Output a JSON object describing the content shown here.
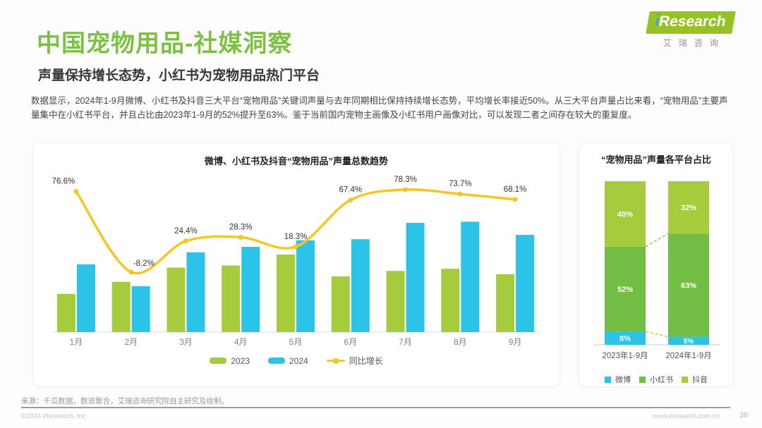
{
  "page": {
    "title": "中国宠物用品-社媒洞察",
    "subtitle": "声量保持增长态势，小红书为宠物用品热门平台",
    "body_text": "数据显示，2024年1-9月微博、小红书及抖音三大平台“宠物用品”关键词声量与去年同期相比保持持续增长态势，平均增长率接近50%。从三大平台声量占比来看，“宠物用品”主要声量集中在小红书平台，并且占比由2023年1-9月的52%提升至63%。鉴于当前国内宠物主画像及小红书用户画像对比，可以发现二者之间存在较大的重复度。",
    "page_number": "36"
  },
  "logo": {
    "brand_i": "i",
    "brand_rest": "Research",
    "brand_cn": "艾瑞咨询"
  },
  "footer": {
    "source": "来源：千瓜数据，数说聚合，艾瑞咨询研究院自主研究及绘制。",
    "copyright": "©2024 iResearch, Inc.",
    "website": "www.iresearch.com.cn"
  },
  "colors": {
    "title_green": "#7cc142",
    "logo_green": "#97c226",
    "bar_2023": "#a6cc3d",
    "bar_2024": "#2cc3e8",
    "line_yellow": "#f8c623",
    "weibo_blue": "#2cc3e8",
    "xiaohongshu_green": "#72bd44",
    "douyin_green": "#a6cc3d",
    "dash_upper": "#8cc63f",
    "dash_lower": "#c2cc3f"
  },
  "chart_data": [
    {
      "type": "bar",
      "title": "微博、小红书及抖音“宠物用品”声量总数趋势",
      "categories": [
        "1月",
        "2月",
        "3月",
        "4月",
        "5月",
        "6月",
        "7月",
        "8月",
        "9月"
      ],
      "series": [
        {
          "name": "2023",
          "type": "bar",
          "color_key": "bar_2023",
          "values": [
            35,
            46,
            59,
            61,
            71,
            51,
            56,
            58,
            53
          ]
        },
        {
          "name": "2024",
          "type": "bar",
          "color_key": "bar_2024",
          "values": [
            62,
            42,
            73,
            78,
            84,
            85,
            100,
            101,
            89
          ]
        },
        {
          "name": "同比增长",
          "type": "line",
          "color_key": "line_yellow",
          "unit": "%",
          "values": [
            76.6,
            -8.2,
            24.4,
            28.3,
            18.3,
            67.4,
            78.3,
            73.7,
            68.1
          ]
        }
      ],
      "value_labels": [
        "76.6%",
        "-8.2%",
        "24.4%",
        "28.3%",
        "18.3%",
        "67.4%",
        "78.3%",
        "73.7%",
        "68.1%"
      ],
      "notes": "bar values are relative volume index (no y-axis shown); line is YoY growth on secondary axis",
      "legend": [
        "2023",
        "2024",
        "同比增长"
      ],
      "legend_position": "bottom",
      "grid": false
    },
    {
      "type": "bar",
      "subtype": "stacked-percent",
      "title": "“宠物用品”声量各平台占比",
      "categories": [
        "2023年1-9月",
        "2024年1-9月"
      ],
      "unit": "%",
      "series": [
        {
          "name": "微博",
          "color_key": "weibo_blue",
          "values": [
            8,
            5
          ]
        },
        {
          "name": "小红书",
          "color_key": "xiaohongshu_green",
          "values": [
            52,
            63
          ]
        },
        {
          "name": "抖音",
          "color_key": "douyin_green",
          "values": [
            40,
            32
          ]
        }
      ],
      "legend": [
        "微博",
        "小红书",
        "抖音"
      ],
      "legend_position": "bottom",
      "ylim": [
        0,
        100
      ],
      "grid": false
    }
  ]
}
